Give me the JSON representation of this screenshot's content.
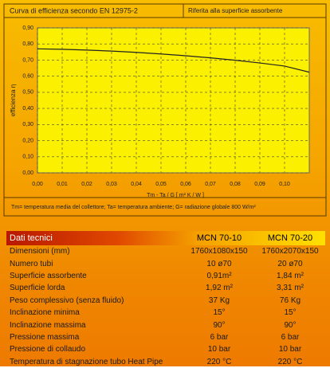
{
  "chart_data": {
    "type": "line",
    "title": "Curva di efficienza secondo EN 12975-2",
    "subtitle": "Riferita alla superficie assorbente",
    "y_label": "efficienza η",
    "x_label": "Tm - Ta / G   [ m² K / W ]",
    "note": "Tm= temperatura media del collettore; Ta= temperatura ambiente; G= radiazione globale 800 W/m²",
    "x": [
      0,
      0.01,
      0.02,
      0.03,
      0.04,
      0.05,
      0.06,
      0.07,
      0.08,
      0.09,
      0.1,
      0.11
    ],
    "series": [
      {
        "color": "#222222",
        "values": [
          0.77,
          0.767,
          0.762,
          0.756,
          0.748,
          0.738,
          0.727,
          0.714,
          0.699,
          0.682,
          0.663,
          0.625
        ]
      }
    ],
    "xlim": [
      0,
      0.11
    ],
    "ylim": [
      0,
      0.9
    ],
    "xticks": [
      {
        "value": 0,
        "label": "0,00"
      },
      {
        "value": 0.01,
        "label": "0,01"
      },
      {
        "value": 0.02,
        "label": "0,02"
      },
      {
        "value": 0.03,
        "label": "0,03"
      },
      {
        "value": 0.04,
        "label": "0,04"
      },
      {
        "value": 0.05,
        "label": "0,05"
      },
      {
        "value": 0.06,
        "label": "0,06"
      },
      {
        "value": 0.07,
        "label": "0,07"
      },
      {
        "value": 0.08,
        "label": "0,08"
      },
      {
        "value": 0.09,
        "label": "0,09"
      },
      {
        "value": 0.1,
        "label": "0,10"
      }
    ],
    "yticks": [
      {
        "value": 0,
        "label": "0,00"
      },
      {
        "value": 0.1,
        "label": "0,10"
      },
      {
        "value": 0.2,
        "label": "0,20"
      },
      {
        "value": 0.3,
        "label": "0,30"
      },
      {
        "value": 0.4,
        "label": "0,40"
      },
      {
        "value": 0.5,
        "label": "0,50"
      },
      {
        "value": 0.6,
        "label": "0,60"
      },
      {
        "value": 0.7,
        "label": "0,70"
      },
      {
        "value": 0.8,
        "label": "0,80"
      },
      {
        "value": 0.9,
        "label": "0,90"
      }
    ],
    "grid": true
  },
  "table": {
    "header": [
      "Dati tecnici",
      "MCN 70-10",
      "MCN 70-20"
    ],
    "rows": [
      [
        "Dimensioni (mm)",
        "1760x1080x150",
        "1760x2070x150"
      ],
      [
        "Numero tubi",
        "10 ø70",
        "20 ø70"
      ],
      [
        "Superficie assorbente",
        "0,91m²",
        "1,84 m²"
      ],
      [
        "Superficie lorda",
        "1,92 m²",
        "3,31 m²"
      ],
      [
        "Peso complessivo (senza fluido)",
        "37 Kg",
        "76 Kg"
      ],
      [
        "Inclinazione minima",
        "15°",
        "15°"
      ],
      [
        "Inclinazione massima",
        "90°",
        "90°"
      ],
      [
        "Pressione massima",
        "6 bar",
        "6 bar"
      ],
      [
        "Pressione di collaudo",
        "10 bar",
        "10 bar"
      ],
      [
        "Temperatura di stagnazione tubo Heat Pipe",
        "220 °C",
        "220 °C"
      ]
    ]
  }
}
